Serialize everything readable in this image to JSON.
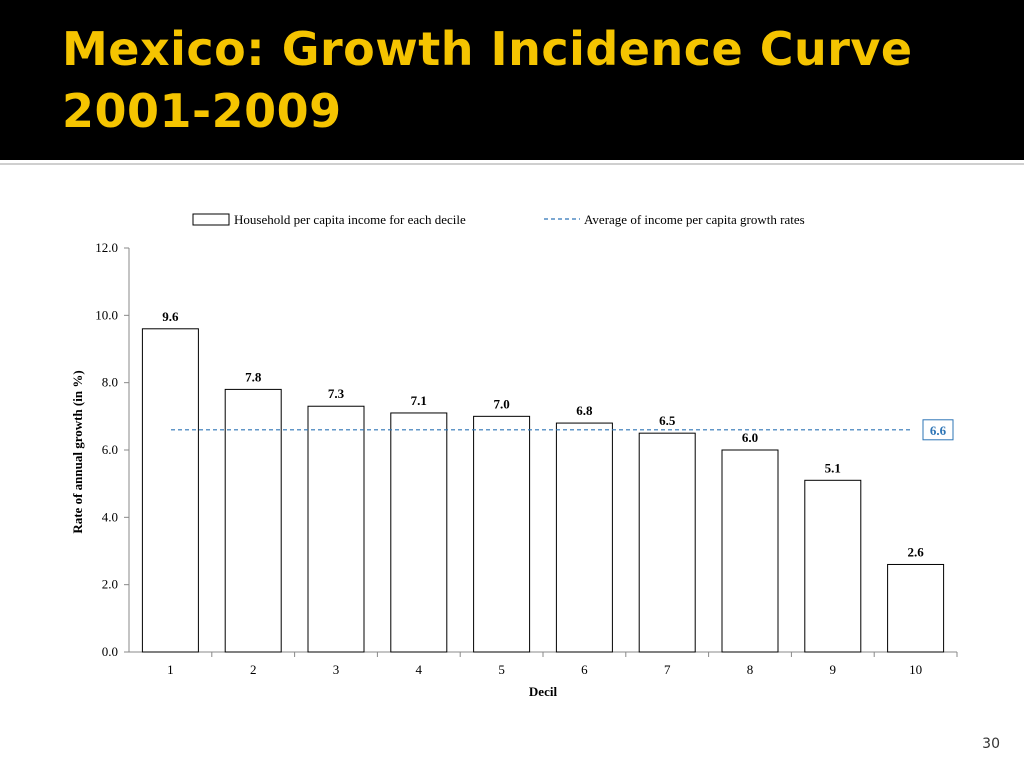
{
  "slide": {
    "title_line1": "Mexico: Growth Incidence Curve",
    "title_line2": "2001-2009",
    "page_number": "30"
  },
  "colors": {
    "title": "#f5c400",
    "title_background": "#000000",
    "bar_fill": "#ffffff",
    "bar_stroke": "#000000",
    "average_line": "#2e75b6"
  },
  "chart_data": {
    "type": "bar",
    "categories": [
      "1",
      "2",
      "3",
      "4",
      "5",
      "6",
      "7",
      "8",
      "9",
      "10"
    ],
    "series": [
      {
        "name": "Household per capita income for each decile",
        "values": [
          9.6,
          7.8,
          7.3,
          7.1,
          7.0,
          6.8,
          6.5,
          6.0,
          5.1,
          2.6
        ],
        "labels": [
          "9.6",
          "7.8",
          "7.3",
          "7.1",
          "7.0",
          "6.8",
          "6.5",
          "6.0",
          "5.1",
          "2.6"
        ]
      }
    ],
    "reference_line": {
      "name": "Average of income per capita growth rates",
      "value": 6.6,
      "label": "6.6",
      "style": "dashed"
    },
    "xlabel": "Decil",
    "ylabel": "Rate of annual growth (in %)",
    "ylim": [
      0,
      12
    ],
    "yticks": [
      "0.0",
      "2.0",
      "4.0",
      "6.0",
      "8.0",
      "10.0",
      "12.0"
    ],
    "grid": false,
    "legend_position": "top"
  }
}
